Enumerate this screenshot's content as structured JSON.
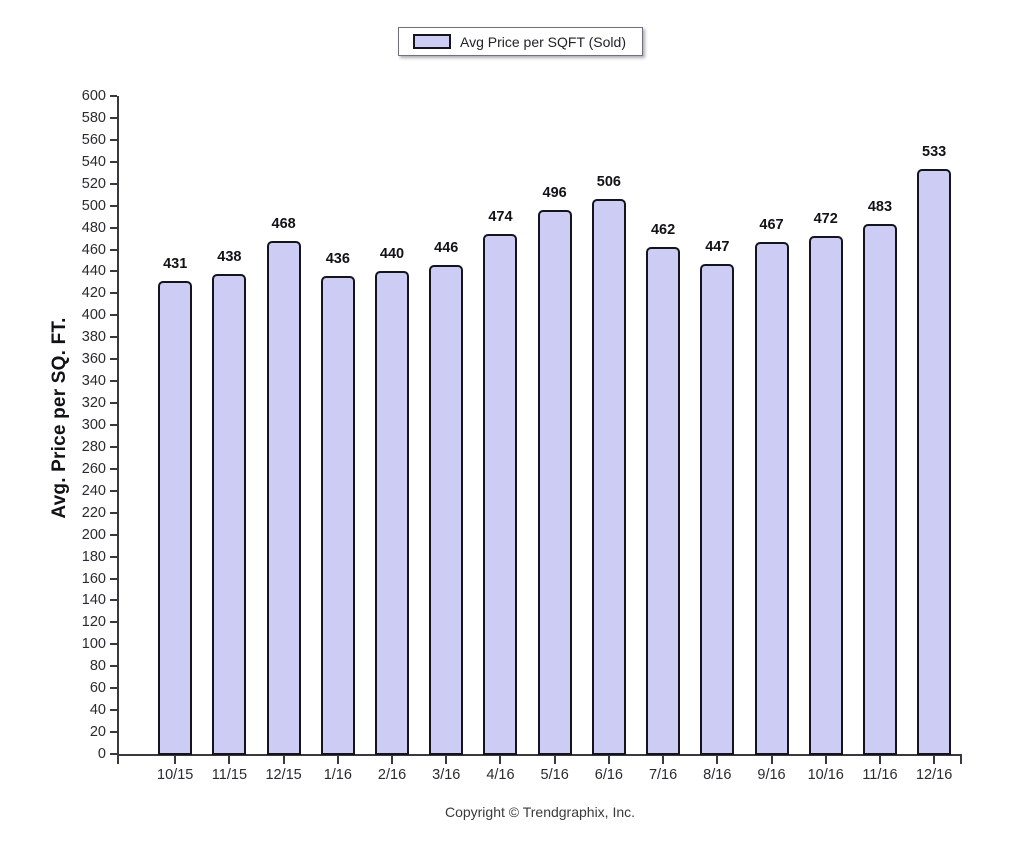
{
  "legend": {
    "label": "Avg Price per SQFT (Sold)"
  },
  "chart_data": {
    "type": "bar",
    "title": "",
    "categories": [
      "10/15",
      "11/15",
      "12/15",
      "1/16",
      "2/16",
      "3/16",
      "4/16",
      "5/16",
      "6/16",
      "7/16",
      "8/16",
      "9/16",
      "10/16",
      "11/16",
      "12/16"
    ],
    "values": [
      431,
      438,
      468,
      436,
      440,
      446,
      474,
      496,
      506,
      462,
      447,
      467,
      472,
      483,
      533
    ],
    "xlabel": "",
    "ylabel": "Avg. Price per SQ. FT.",
    "ylim": [
      0,
      600
    ],
    "ytick_step": 20,
    "grid": false,
    "legend_entries": [
      "Avg Price per SQFT (Sold)"
    ],
    "legend_position": "top-center",
    "value_labels_shown": true
  },
  "colors": {
    "bar_fill": "#ccccf4",
    "bar_border": "#14141c",
    "axis": "#38383f"
  },
  "footer": {
    "copyright": "Copyright © Trendgraphix, Inc."
  }
}
